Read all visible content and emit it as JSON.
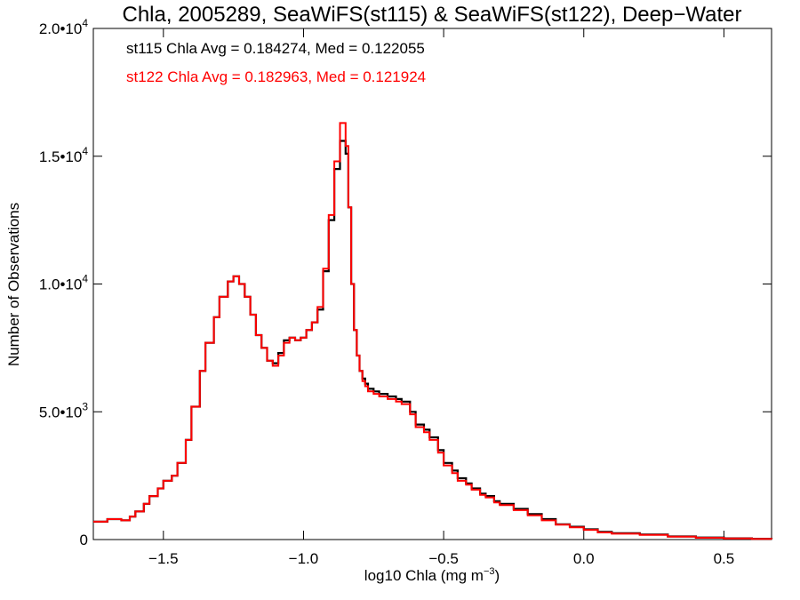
{
  "chart_data": {
    "type": "line",
    "title": "Chla, 2005289, SeaWiFS(st115) & SeaWiFS(st122), Deep−Water",
    "xlabel": "log10 Chla (mg m",
    "xlabel_sup": "−3",
    "xlabel_end": ")",
    "ylabel": "Number of Observations",
    "xlim": [
      -1.75,
      0.67
    ],
    "ylim": [
      0,
      20000
    ],
    "grid": false,
    "x_ticks": [
      {
        "value": -1.5,
        "label": "−1.5"
      },
      {
        "value": -1.0,
        "label": "−1.0"
      },
      {
        "value": -0.5,
        "label": "−0.5"
      },
      {
        "value": 0.0,
        "label": "0.0"
      },
      {
        "value": 0.5,
        "label": "0.5"
      }
    ],
    "y_ticks": [
      {
        "value": 0,
        "base": "0",
        "exp": ""
      },
      {
        "value": 5000,
        "base": "5.0•10",
        "exp": "3"
      },
      {
        "value": 10000,
        "base": "1.0•10",
        "exp": "4"
      },
      {
        "value": 15000,
        "base": "1.5•10",
        "exp": "4"
      },
      {
        "value": 20000,
        "base": "2.0•10",
        "exp": "4"
      }
    ],
    "annotations": [
      {
        "text": "st115 Chla Avg = 0.184274, Med = 0.122055",
        "color": "#000000"
      },
      {
        "text": "st122 Chla Avg = 0.182963, Med = 0.121924",
        "color": "#ff0000"
      }
    ],
    "series": [
      {
        "color": "#000000",
        "x": [
          -1.75,
          -1.7,
          -1.65,
          -1.62,
          -1.6,
          -1.57,
          -1.55,
          -1.52,
          -1.5,
          -1.47,
          -1.45,
          -1.42,
          -1.4,
          -1.37,
          -1.35,
          -1.32,
          -1.3,
          -1.27,
          -1.25,
          -1.23,
          -1.21,
          -1.19,
          -1.17,
          -1.15,
          -1.13,
          -1.11,
          -1.09,
          -1.07,
          -1.05,
          -1.03,
          -1.01,
          -0.99,
          -0.97,
          -0.95,
          -0.93,
          -0.91,
          -0.89,
          -0.87,
          -0.85,
          -0.84,
          -0.83,
          -0.82,
          -0.81,
          -0.8,
          -0.79,
          -0.78,
          -0.77,
          -0.75,
          -0.73,
          -0.7,
          -0.67,
          -0.65,
          -0.62,
          -0.6,
          -0.57,
          -0.55,
          -0.52,
          -0.5,
          -0.47,
          -0.45,
          -0.42,
          -0.4,
          -0.37,
          -0.35,
          -0.32,
          -0.3,
          -0.25,
          -0.2,
          -0.15,
          -0.1,
          -0.05,
          0.0,
          0.05,
          0.1,
          0.2,
          0.3,
          0.4,
          0.5,
          0.6,
          0.67
        ],
        "values": [
          700,
          800,
          750,
          900,
          1100,
          1400,
          1700,
          2000,
          2300,
          2500,
          3000,
          3900,
          5200,
          6600,
          7700,
          8700,
          9500,
          10100,
          10300,
          10000,
          9500,
          8800,
          8000,
          7500,
          7000,
          6900,
          7300,
          7800,
          7900,
          7800,
          7900,
          8200,
          8500,
          9000,
          10500,
          12500,
          14500,
          15600,
          15100,
          13000,
          10000,
          8200,
          7200,
          6600,
          6300,
          6100,
          5900,
          5800,
          5700,
          5600,
          5500,
          5400,
          5000,
          4500,
          4300,
          4000,
          3500,
          3000,
          2700,
          2400,
          2200,
          2000,
          1800,
          1700,
          1500,
          1400,
          1200,
          1000,
          800,
          600,
          500,
          400,
          300,
          250,
          200,
          120,
          80,
          50,
          30,
          20
        ]
      },
      {
        "color": "#ff0000",
        "x": [
          -1.75,
          -1.7,
          -1.65,
          -1.62,
          -1.6,
          -1.57,
          -1.55,
          -1.52,
          -1.5,
          -1.47,
          -1.45,
          -1.42,
          -1.4,
          -1.37,
          -1.35,
          -1.32,
          -1.3,
          -1.27,
          -1.25,
          -1.23,
          -1.21,
          -1.19,
          -1.17,
          -1.15,
          -1.13,
          -1.11,
          -1.09,
          -1.07,
          -1.05,
          -1.03,
          -1.01,
          -0.99,
          -0.97,
          -0.95,
          -0.93,
          -0.91,
          -0.89,
          -0.87,
          -0.85,
          -0.84,
          -0.83,
          -0.82,
          -0.81,
          -0.8,
          -0.79,
          -0.78,
          -0.77,
          -0.75,
          -0.73,
          -0.7,
          -0.67,
          -0.65,
          -0.62,
          -0.6,
          -0.57,
          -0.55,
          -0.52,
          -0.5,
          -0.47,
          -0.45,
          -0.42,
          -0.4,
          -0.37,
          -0.35,
          -0.32,
          -0.3,
          -0.25,
          -0.2,
          -0.15,
          -0.1,
          -0.05,
          0.0,
          0.05,
          0.1,
          0.2,
          0.3,
          0.4,
          0.5,
          0.6,
          0.67
        ],
        "values": [
          700,
          800,
          750,
          900,
          1100,
          1400,
          1700,
          2000,
          2300,
          2500,
          3000,
          3900,
          5200,
          6600,
          7700,
          8700,
          9500,
          10100,
          10300,
          10000,
          9500,
          8800,
          8000,
          7500,
          7000,
          6800,
          7200,
          7700,
          7900,
          7800,
          7900,
          8200,
          8500,
          9100,
          10600,
          12700,
          14800,
          16300,
          15400,
          13000,
          10000,
          8200,
          7200,
          6600,
          6200,
          6000,
          5800,
          5700,
          5600,
          5500,
          5400,
          5300,
          4900,
          4400,
          4200,
          3900,
          3400,
          2900,
          2600,
          2300,
          2150,
          1950,
          1750,
          1650,
          1450,
          1350,
          1150,
          950,
          750,
          580,
          480,
          380,
          280,
          230,
          180,
          110,
          70,
          45,
          25,
          15
        ]
      }
    ]
  }
}
